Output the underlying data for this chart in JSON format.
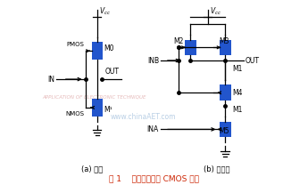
{
  "bg_color": "#ffffff",
  "title_text": "图 1    非门、与非门 CMOS 电路",
  "label_a_fixed": "(a) 非门",
  "label_b_fixed": "(b) 与非门",
  "watermark1": "APPLICATION OF ELECTRONIC TECHNIQUE",
  "watermark2": "www.chinaAET.com",
  "mosfet_color": "#2255cc",
  "wire_color": "#000000",
  "label_color": "#000000",
  "title_color": "#cc2200"
}
